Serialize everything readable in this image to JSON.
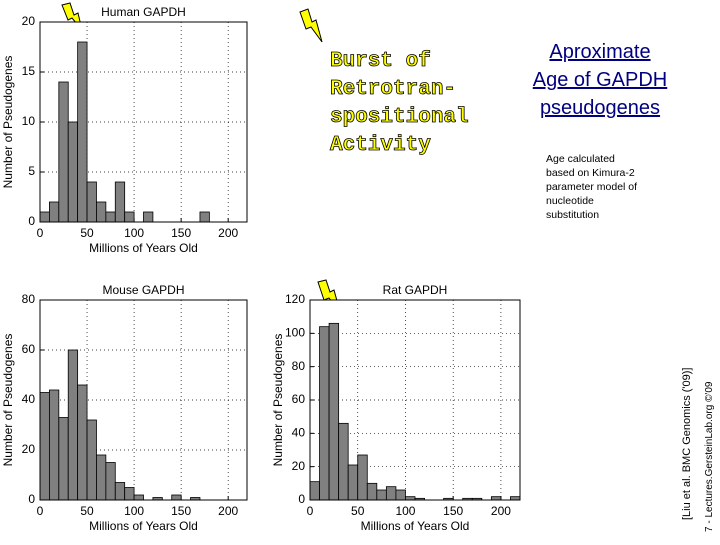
{
  "chart_data": [
    {
      "type": "histogram",
      "title": "Human GAPDH",
      "x_label": "Millions of Years Old",
      "y_label": "Number of Pseudogenes",
      "bins": [
        0,
        10,
        20,
        30,
        40,
        50,
        60,
        70,
        80,
        90,
        100,
        110,
        120,
        130,
        140,
        150,
        160,
        170,
        180,
        190,
        200,
        210,
        220
      ],
      "values": [
        1,
        2,
        14,
        10,
        18,
        4,
        2,
        1,
        4,
        1,
        0,
        1,
        0,
        0,
        0,
        0,
        0,
        1,
        0,
        0,
        0,
        0
      ],
      "color": "#808080",
      "xlim": [
        0,
        220
      ],
      "ylim": [
        0,
        20
      ],
      "xticks": [
        0,
        50,
        100,
        150,
        200
      ],
      "yticks": [
        0,
        5,
        10,
        15,
        20
      ],
      "grid": true
    },
    {
      "type": "histogram",
      "title": "Mouse GAPDH",
      "x_label": "Millions of Years Old",
      "y_label": "Number of Pseudogenes",
      "bins": [
        0,
        10,
        20,
        30,
        40,
        50,
        60,
        70,
        80,
        90,
        100,
        110,
        120,
        130,
        140,
        150,
        160,
        170,
        180,
        190,
        200,
        210,
        220
      ],
      "values": [
        43,
        44,
        33,
        60,
        46,
        32,
        18,
        15,
        7,
        5,
        2,
        0,
        1,
        0,
        2,
        0,
        1,
        0,
        0,
        0,
        0,
        0
      ],
      "color": "#808080",
      "xlim": [
        0,
        220
      ],
      "ylim": [
        0,
        80
      ],
      "xticks": [
        0,
        50,
        100,
        150,
        200
      ],
      "yticks": [
        0,
        20,
        40,
        60,
        80
      ],
      "grid": true
    },
    {
      "type": "histogram",
      "title": "Rat GAPDH",
      "x_label": "Millions of Years Old",
      "y_label": "Number of Pseudogenes",
      "bins": [
        0,
        10,
        20,
        30,
        40,
        50,
        60,
        70,
        80,
        90,
        100,
        110,
        120,
        130,
        140,
        150,
        160,
        170,
        180,
        190,
        200,
        210,
        220
      ],
      "values": [
        11,
        104,
        106,
        46,
        21,
        27,
        10,
        6,
        8,
        6,
        2,
        1,
        0,
        0,
        1,
        0,
        1,
        1,
        0,
        2,
        0,
        2
      ],
      "color": "#808080",
      "xlim": [
        0,
        220
      ],
      "ylim": [
        0,
        120
      ],
      "xticks": [
        0,
        50,
        100,
        150,
        200
      ],
      "yticks": [
        0,
        20,
        40,
        60,
        80,
        100,
        120
      ],
      "grid": true
    }
  ],
  "slide": {
    "burst_lines": [
      "Burst of",
      "Retrotran-",
      "spositional",
      "Activity"
    ],
    "title_lines": [
      "Aproximate",
      "Age of GAPDH",
      "pseudogenes"
    ],
    "note_lines": [
      "Age calculated",
      "based on Kimura-2",
      "parameter model of",
      "nucleotide",
      "substitution"
    ],
    "citation": "[Liu et al. BMC Genomics ('09)]",
    "footer": "7 - Lectures.GersteinLab.org ©'09"
  }
}
